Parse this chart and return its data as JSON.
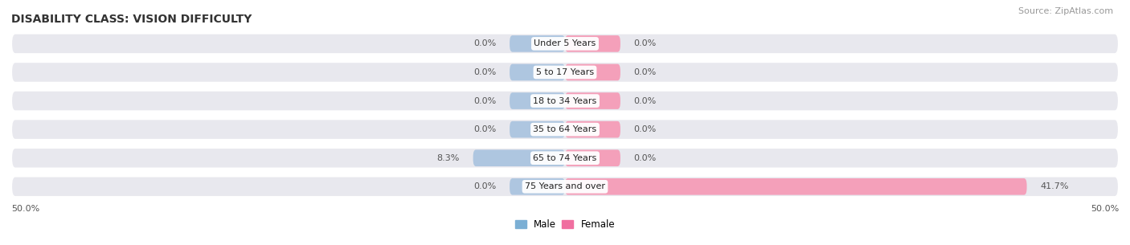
{
  "title": "DISABILITY CLASS: VISION DIFFICULTY",
  "source": "Source: ZipAtlas.com",
  "categories": [
    "Under 5 Years",
    "5 to 17 Years",
    "18 to 34 Years",
    "35 to 64 Years",
    "65 to 74 Years",
    "75 Years and over"
  ],
  "male_values": [
    0.0,
    0.0,
    0.0,
    0.0,
    8.3,
    0.0
  ],
  "female_values": [
    0.0,
    0.0,
    0.0,
    0.0,
    0.0,
    41.7
  ],
  "male_color": "#aec6e0",
  "female_color": "#f4a0ba",
  "male_color_strong": "#7bafd4",
  "female_color_strong": "#f06fa0",
  "row_bg_color": "#e8e8ee",
  "axis_max": 50.0,
  "min_bar_width": 5.0,
  "title_fontsize": 10,
  "source_fontsize": 8,
  "bar_label_fontsize": 8,
  "category_fontsize": 8,
  "legend_fontsize": 8.5,
  "axis_label_fontsize": 8
}
